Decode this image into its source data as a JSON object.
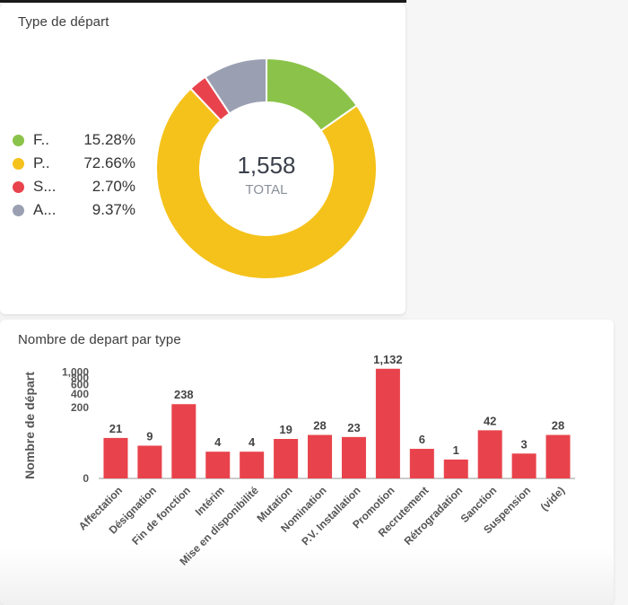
{
  "donut_card": {
    "title": "Type de départ",
    "total_value": "1,558",
    "total_label": "TOTAL"
  },
  "bar_card": {
    "title": "Nombre de depart par type"
  },
  "chart_data": [
    {
      "type": "pie",
      "title": "Type de départ",
      "total": 1558,
      "slices": [
        {
          "label": "F..",
          "percent": 15.28,
          "percent_text": "15.28%",
          "color": "#8bc34a"
        },
        {
          "label": "P..",
          "percent": 72.66,
          "percent_text": "72.66%",
          "color": "#f5c21b"
        },
        {
          "label": "S...",
          "percent": 2.7,
          "percent_text": "2.70%",
          "color": "#e8434c"
        },
        {
          "label": "A...",
          "percent": 9.37,
          "percent_text": "9.37%",
          "color": "#9aa0b2"
        }
      ]
    },
    {
      "type": "bar",
      "title": "Nombre de depart par type",
      "xlabel": "",
      "ylabel": "Nombre de départ",
      "y_scale": "pow",
      "yticks": [
        0,
        200,
        400,
        600,
        800,
        1000
      ],
      "ytick_labels": [
        "0",
        "200",
        "400",
        "600",
        "800",
        "1,000"
      ],
      "color": "#e8434c",
      "categories": [
        "Affectation",
        "Désignation",
        "Fin de fonction",
        "Intérim",
        "Mise en disponibilité",
        "Mutation",
        "Nomination",
        "P.V. Installation",
        "Promotion",
        "Recrutement",
        "Rétrogradation",
        "Sanction",
        "Suspension",
        "(vide)"
      ],
      "values": [
        21,
        9,
        238,
        4,
        4,
        19,
        28,
        23,
        1132,
        6,
        1,
        42,
        3,
        28
      ],
      "value_labels": [
        "21",
        "9",
        "238",
        "4",
        "4",
        "19",
        "28",
        "23",
        "1,132",
        "6",
        "1",
        "42",
        "3",
        "28"
      ]
    }
  ]
}
